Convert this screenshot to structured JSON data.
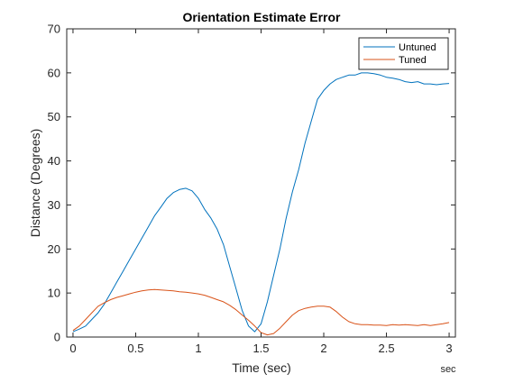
{
  "chart_data": {
    "type": "line",
    "title": "Orientation Estimate Error",
    "xlabel": "Time (sec)",
    "ylabel": "Distance (Degrees)",
    "x_unit_label": "sec",
    "xlim": [
      -0.05,
      3.05
    ],
    "ylim": [
      0,
      70
    ],
    "xticks": [
      0,
      0.5,
      1,
      1.5,
      2,
      2.5,
      3
    ],
    "xtick_labels": [
      "0",
      "0.5",
      "1",
      "1.5",
      "2",
      "2.5",
      "3"
    ],
    "yticks": [
      0,
      10,
      20,
      30,
      40,
      50,
      60,
      70
    ],
    "ytick_labels": [
      "0",
      "10",
      "20",
      "30",
      "40",
      "50",
      "60",
      "70"
    ],
    "grid": false,
    "legend_position": "top-right",
    "series": [
      {
        "name": "Untuned",
        "color": "#0072BD",
        "x": [
          0,
          0.05,
          0.1,
          0.15,
          0.2,
          0.25,
          0.3,
          0.35,
          0.4,
          0.45,
          0.5,
          0.55,
          0.6,
          0.65,
          0.7,
          0.75,
          0.8,
          0.85,
          0.9,
          0.95,
          1.0,
          1.05,
          1.1,
          1.15,
          1.2,
          1.25,
          1.3,
          1.35,
          1.4,
          1.45,
          1.5,
          1.55,
          1.6,
          1.65,
          1.7,
          1.75,
          1.8,
          1.85,
          1.9,
          1.95,
          2.0,
          2.05,
          2.1,
          2.15,
          2.2,
          2.25,
          2.3,
          2.35,
          2.4,
          2.45,
          2.5,
          2.55,
          2.6,
          2.65,
          2.7,
          2.75,
          2.8,
          2.85,
          2.9,
          2.95,
          3.0
        ],
        "y": [
          1.2,
          1.8,
          2.5,
          4.0,
          5.5,
          7.5,
          10.0,
          12.5,
          15.0,
          17.5,
          20.0,
          22.5,
          25.0,
          27.5,
          29.5,
          31.5,
          32.8,
          33.5,
          33.8,
          33.2,
          31.5,
          29.0,
          27.0,
          24.5,
          21.0,
          16.0,
          11.0,
          6.0,
          2.5,
          1.2,
          3.0,
          8.0,
          14.0,
          20.0,
          27.0,
          33.0,
          38.0,
          44.0,
          49.0,
          54.0,
          56.0,
          57.5,
          58.5,
          59.0,
          59.5,
          59.5,
          60.0,
          60.0,
          59.8,
          59.5,
          59.0,
          58.8,
          58.5,
          58.0,
          57.8,
          58.0,
          57.5,
          57.5,
          57.3,
          57.5,
          57.6
        ]
      },
      {
        "name": "Tuned",
        "color": "#D95319",
        "x": [
          0,
          0.05,
          0.1,
          0.15,
          0.2,
          0.25,
          0.3,
          0.35,
          0.4,
          0.45,
          0.5,
          0.55,
          0.6,
          0.65,
          0.7,
          0.75,
          0.8,
          0.85,
          0.9,
          0.95,
          1.0,
          1.05,
          1.1,
          1.15,
          1.2,
          1.25,
          1.3,
          1.35,
          1.4,
          1.45,
          1.5,
          1.55,
          1.6,
          1.65,
          1.7,
          1.75,
          1.8,
          1.85,
          1.9,
          1.95,
          2.0,
          2.05,
          2.1,
          2.15,
          2.2,
          2.25,
          2.3,
          2.35,
          2.4,
          2.45,
          2.5,
          2.55,
          2.6,
          2.65,
          2.7,
          2.75,
          2.8,
          2.85,
          2.9,
          2.95,
          3.0
        ],
        "y": [
          1.5,
          2.5,
          4.0,
          5.5,
          7.0,
          7.8,
          8.5,
          9.0,
          9.4,
          9.8,
          10.2,
          10.5,
          10.7,
          10.8,
          10.7,
          10.6,
          10.5,
          10.3,
          10.2,
          10.0,
          9.8,
          9.5,
          9.0,
          8.5,
          8.0,
          7.2,
          6.2,
          5.0,
          3.8,
          2.5,
          1.0,
          0.5,
          0.8,
          2.0,
          3.5,
          5.0,
          6.0,
          6.5,
          6.8,
          7.0,
          7.0,
          6.8,
          5.8,
          4.5,
          3.5,
          3.0,
          2.8,
          2.8,
          2.7,
          2.7,
          2.6,
          2.8,
          2.7,
          2.8,
          2.7,
          2.6,
          2.8,
          2.6,
          2.8,
          3.0,
          3.3
        ]
      }
    ]
  }
}
